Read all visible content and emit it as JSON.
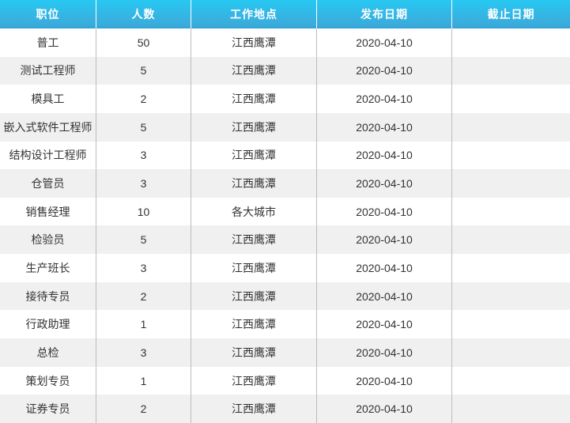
{
  "colors": {
    "header_gradient_top": "#26c9f2",
    "header_gradient_bottom": "#2da2d5",
    "header_text": "#ffffff",
    "row_alt_background": "#f0f0f0",
    "row_background": "#ffffff",
    "cell_divider": "#bdbdbd",
    "body_text": "#333333"
  },
  "table": {
    "columns": [
      {
        "key": "position",
        "label": "职位"
      },
      {
        "key": "headcount",
        "label": "人数"
      },
      {
        "key": "location",
        "label": "工作地点"
      },
      {
        "key": "publish_date",
        "label": "发布日期"
      },
      {
        "key": "deadline",
        "label": "截止日期"
      }
    ],
    "rows": [
      [
        "普工",
        "50",
        "江西鹰潭",
        "2020-04-10",
        ""
      ],
      [
        "测试工程师",
        "5",
        "江西鹰潭",
        "2020-04-10",
        ""
      ],
      [
        "模具工",
        "2",
        "江西鹰潭",
        "2020-04-10",
        ""
      ],
      [
        "嵌入式软件工程师",
        "5",
        "江西鹰潭",
        "2020-04-10",
        ""
      ],
      [
        "结构设计工程师",
        "3",
        "江西鹰潭",
        "2020-04-10",
        ""
      ],
      [
        "仓管员",
        "3",
        "江西鹰潭",
        "2020-04-10",
        ""
      ],
      [
        "销售经理",
        "10",
        "各大城市",
        "2020-04-10",
        ""
      ],
      [
        "检验员",
        "5",
        "江西鹰潭",
        "2020-04-10",
        ""
      ],
      [
        "生产班长",
        "3",
        "江西鹰潭",
        "2020-04-10",
        ""
      ],
      [
        "接待专员",
        "2",
        "江西鹰潭",
        "2020-04-10",
        ""
      ],
      [
        "行政助理",
        "1",
        "江西鹰潭",
        "2020-04-10",
        ""
      ],
      [
        "总检",
        "3",
        "江西鹰潭",
        "2020-04-10",
        ""
      ],
      [
        "策划专员",
        "1",
        "江西鹰潭",
        "2020-04-10",
        ""
      ],
      [
        "证券专员",
        "2",
        "江西鹰潭",
        "2020-04-10",
        ""
      ]
    ]
  }
}
